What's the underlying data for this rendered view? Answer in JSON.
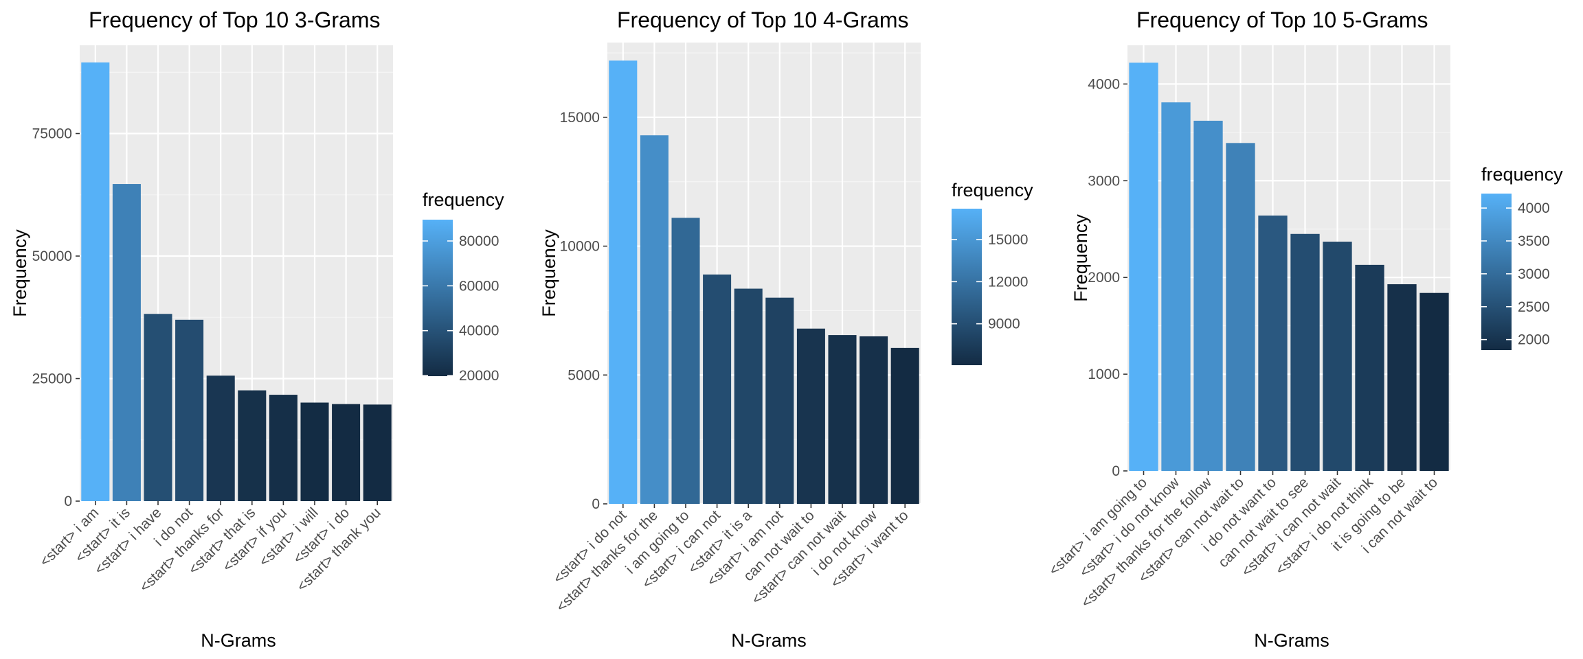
{
  "chart_data": [
    {
      "type": "bar",
      "title": "Frequency of Top 10 3-Grams",
      "xlabel": "N-Grams",
      "ylabel": "Frequency",
      "categories": [
        "<start> i am",
        "<start> it is",
        "<start> i have",
        "i do not",
        "<start> thanks for",
        "<start> that is",
        "<start> if you",
        "<start> i will",
        "<start> i do",
        "<start> thank you"
      ],
      "values": [
        89500,
        64700,
        38200,
        37000,
        25600,
        22600,
        21700,
        20100,
        19800,
        19700
      ],
      "ylim": [
        0,
        93000
      ],
      "yticks": [
        0,
        25000,
        50000,
        75000
      ],
      "ytick_labels": [
        "0",
        "25000",
        "50000",
        "75000"
      ],
      "grid": true,
      "legend": {
        "title": "frequency",
        "placement": "right",
        "range": [
          19700,
          89500
        ],
        "ticks": [
          20000,
          40000,
          60000,
          80000
        ],
        "tick_labels": [
          "20000",
          "40000",
          "60000",
          "80000"
        ],
        "low_color": "#132B43",
        "high_color": "#56B1F7"
      }
    },
    {
      "type": "bar",
      "title": "Frequency of Top 10 4-Grams",
      "xlabel": "N-Grams",
      "ylabel": "Frequency",
      "categories": [
        "<start> i do not",
        "<start> thanks for the",
        "i am going to",
        "<start> i can not",
        "<start> it is a",
        "<start> i am not",
        "can not wait to",
        "<start> can not wait",
        "i do not know",
        "<start> i want to"
      ],
      "values": [
        17200,
        14300,
        11100,
        8900,
        8350,
        8000,
        6800,
        6550,
        6500,
        6050
      ],
      "ylim": [
        0,
        17900
      ],
      "yticks": [
        0,
        5000,
        10000,
        15000
      ],
      "ytick_labels": [
        "0",
        "5000",
        "10000",
        "15000"
      ],
      "grid": true,
      "legend": {
        "title": "frequency",
        "placement": "right",
        "range": [
          6050,
          17200
        ],
        "ticks": [
          9000,
          12000,
          15000
        ],
        "tick_labels": [
          "9000",
          "12000",
          "15000"
        ],
        "low_color": "#132B43",
        "high_color": "#56B1F7"
      }
    },
    {
      "type": "bar",
      "title": "Frequency of Top 10 5-Grams",
      "xlabel": "N-Grams",
      "ylabel": "Frequency",
      "categories": [
        "<start> i am going to",
        "<start> i do not know",
        "<start> thanks for the follow",
        "<start> can not wait to",
        "i do not want to",
        "can not wait to see",
        "<start> i can not wait",
        "<start> i do not think",
        "it is going to be",
        "i can not wait to"
      ],
      "values": [
        4220,
        3810,
        3620,
        3390,
        2640,
        2450,
        2370,
        2130,
        1930,
        1840
      ],
      "ylim": [
        0,
        4400
      ],
      "yticks": [
        0,
        1000,
        2000,
        3000,
        4000
      ],
      "ytick_labels": [
        "0",
        "1000",
        "2000",
        "3000",
        "4000"
      ],
      "grid": true,
      "legend": {
        "title": "frequency",
        "placement": "right",
        "range": [
          1840,
          4220
        ],
        "ticks": [
          2000,
          2500,
          3000,
          3500,
          4000
        ],
        "tick_labels": [
          "2000",
          "2500",
          "3000",
          "3500",
          "4000"
        ],
        "low_color": "#132B43",
        "high_color": "#56B1F7"
      }
    }
  ]
}
